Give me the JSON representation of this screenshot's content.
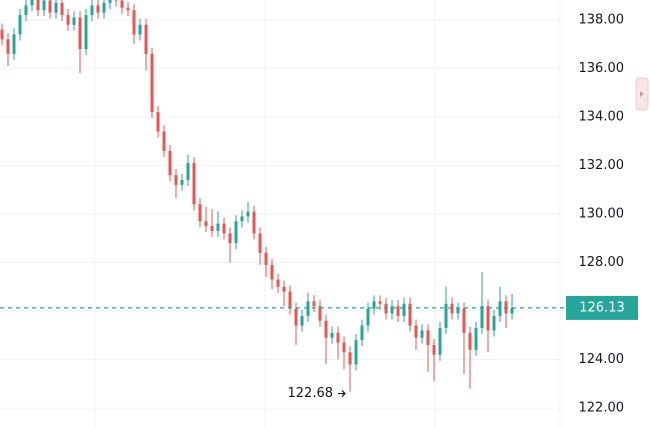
{
  "chart_data": {
    "type": "candlestick",
    "open": [
      137.6,
      137.2,
      136.6,
      137.4,
      138.2,
      138.6,
      138.9,
      138.4,
      138.8,
      138.3,
      138.7,
      138.2,
      137.8,
      138.1,
      136.8,
      138.2,
      138.6,
      138.3,
      138.7,
      138.9,
      138.8,
      138.5,
      138.4,
      137.4,
      137.8,
      136.6,
      134.2,
      133.4,
      132.6,
      131.6,
      131.2,
      131.4,
      132.1,
      130.4,
      129.7,
      129.5,
      129.3,
      129.6,
      129.2,
      128.8,
      129.7,
      129.9,
      130.1,
      129.2,
      128.4,
      127.9,
      127.3,
      127.0,
      126.8,
      126.1,
      125.4,
      125.8,
      126.4,
      126.2,
      125.6,
      124.9,
      125.1,
      124.7,
      124.3,
      123.8,
      124.8,
      125.4,
      126.1,
      126.4,
      126.3,
      125.9,
      126.2,
      125.8,
      126.3,
      125.4,
      124.9,
      125.2,
      124.6,
      124.2,
      125.3,
      126.3,
      125.9,
      126.1,
      125.1,
      124.4,
      125.3,
      126.2,
      125.2,
      125.8,
      126.4,
      125.9
    ],
    "high": [
      137.85,
      137.45,
      137.65,
      138.45,
      138.85,
      139.15,
      139.15,
      139.05,
      139.05,
      138.95,
      138.95,
      138.45,
      138.35,
      138.35,
      138.45,
      138.85,
      138.85,
      138.95,
      139.15,
      139.15,
      139.05,
      138.75,
      138.65,
      138.05,
      138.05,
      136.85,
      134.45,
      133.65,
      132.85,
      131.85,
      131.65,
      132.45,
      132.35,
      130.65,
      130.3,
      130.2,
      130.1,
      129.85,
      129.45,
      129.95,
      130.15,
      130.5,
      130.35,
      129.45,
      128.65,
      128.15,
      127.55,
      127.25,
      127.05,
      126.35,
      126.05,
      126.75,
      126.65,
      126.45,
      125.85,
      125.35,
      125.35,
      124.95,
      124.55,
      125.05,
      125.65,
      126.35,
      126.65,
      126.65,
      126.55,
      126.45,
      126.45,
      126.55,
      126.55,
      125.65,
      125.45,
      125.45,
      124.85,
      125.55,
      127.0,
      126.55,
      126.35,
      126.35,
      125.35,
      125.55,
      127.6,
      126.45,
      126.05,
      127.0,
      126.65,
      126.7
    ],
    "low": [
      136.95,
      136.1,
      136.35,
      137.15,
      137.95,
      138.35,
      138.15,
      138.15,
      138.05,
      138.05,
      137.95,
      137.55,
      137.55,
      135.8,
      136.55,
      137.95,
      138.05,
      138.05,
      138.45,
      138.55,
      138.25,
      138.15,
      137.0,
      137.15,
      135.9,
      133.95,
      133.15,
      132.35,
      131.35,
      130.65,
      130.95,
      131.15,
      130.15,
      129.45,
      129.25,
      129.05,
      129.05,
      128.95,
      128.0,
      128.55,
      129.45,
      129.65,
      128.95,
      127.9,
      127.4,
      126.9,
      126.75,
      126.2,
      125.85,
      124.6,
      125.15,
      125.55,
      125.95,
      125.35,
      123.8,
      124.65,
      124.0,
      123.6,
      122.68,
      123.55,
      124.55,
      125.15,
      125.85,
      126.05,
      125.65,
      125.65,
      125.55,
      125.55,
      125.15,
      124.4,
      124.65,
      123.5,
      123.1,
      123.95,
      125.05,
      125.65,
      125.65,
      123.4,
      122.8,
      124.15,
      125.05,
      124.3,
      124.95,
      125.55,
      125.3,
      125.65
    ],
    "close": [
      137.2,
      136.6,
      137.4,
      138.2,
      138.6,
      138.9,
      138.4,
      138.8,
      138.3,
      138.7,
      138.2,
      137.8,
      138.1,
      136.8,
      138.2,
      138.6,
      138.3,
      138.7,
      138.9,
      138.8,
      138.5,
      138.4,
      137.4,
      137.8,
      136.6,
      134.2,
      133.4,
      132.6,
      131.6,
      131.2,
      131.4,
      132.1,
      130.4,
      129.7,
      129.5,
      129.3,
      129.6,
      129.2,
      128.8,
      129.7,
      129.9,
      130.1,
      129.2,
      128.4,
      127.9,
      127.3,
      127.0,
      126.8,
      126.1,
      125.4,
      125.8,
      126.4,
      126.2,
      125.6,
      124.9,
      125.1,
      124.7,
      124.3,
      123.8,
      124.8,
      125.4,
      126.1,
      126.4,
      126.3,
      125.9,
      126.2,
      125.8,
      126.3,
      125.4,
      124.9,
      125.2,
      124.6,
      124.2,
      125.3,
      126.3,
      125.9,
      126.1,
      125.1,
      124.4,
      125.3,
      126.2,
      125.2,
      125.8,
      126.4,
      125.9,
      126.13
    ],
    "up_color": "#26a69a",
    "down_color": "#ef5350",
    "ylim": [
      121.22,
      138.82
    ],
    "yticks": [
      {
        "value": 122,
        "label": "122.00"
      },
      {
        "value": 124,
        "label": "124.00"
      },
      {
        "value": 126,
        "label": "126.00"
      },
      {
        "value": 128,
        "label": "128.00"
      },
      {
        "value": 130,
        "label": "130.00"
      },
      {
        "value": 132,
        "label": "132.00"
      },
      {
        "value": 134,
        "label": "134.00"
      },
      {
        "value": 136,
        "label": "136.00"
      },
      {
        "value": 138,
        "label": "138.00"
      }
    ],
    "grid": true,
    "last_price": {
      "value": 126.13,
      "label": "126.13"
    },
    "min_label": {
      "value": 122.68,
      "label": "122.68"
    }
  }
}
